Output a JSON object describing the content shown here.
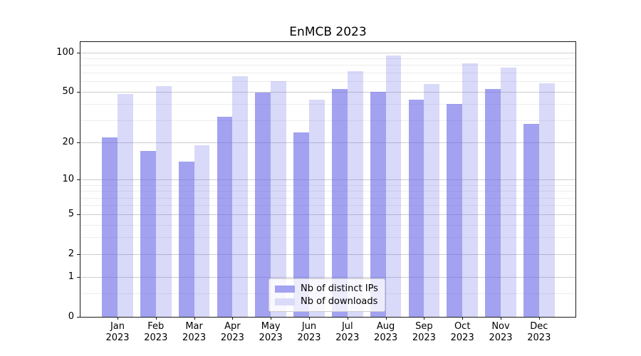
{
  "chart_data": {
    "type": "bar",
    "title": "EnMCB 2023",
    "categories": [
      "Jan",
      "Feb",
      "Mar",
      "Apr",
      "May",
      "Jun",
      "Jul",
      "Aug",
      "Sep",
      "Oct",
      "Nov",
      "Dec"
    ],
    "year_label": "2023",
    "series": [
      {
        "name": "Nb of distinct IPs",
        "values": [
          22,
          17,
          14,
          32,
          49,
          24,
          52,
          50,
          43,
          40,
          52,
          28
        ],
        "fill": "#6969E6",
        "fill_alpha": 0.62,
        "legend_color": "#A2A2F0"
      },
      {
        "name": "Nb of downloads",
        "values": [
          48,
          55,
          19,
          66,
          60,
          43,
          72,
          95,
          57,
          82,
          76,
          58
        ],
        "fill": "#6969E6",
        "fill_alpha": 0.25,
        "legend_color": "#DADAF9"
      }
    ],
    "yscale": "log1p",
    "ylim": [
      0,
      120
    ],
    "yticks": [
      0,
      1,
      2,
      5,
      10,
      20,
      50,
      100
    ],
    "yticks_minor": [
      0.5,
      3,
      4,
      6,
      7,
      8,
      9,
      30,
      40,
      60,
      70,
      80,
      90
    ],
    "grid": "horizontal",
    "legend_position": "lower-center-inside"
  }
}
